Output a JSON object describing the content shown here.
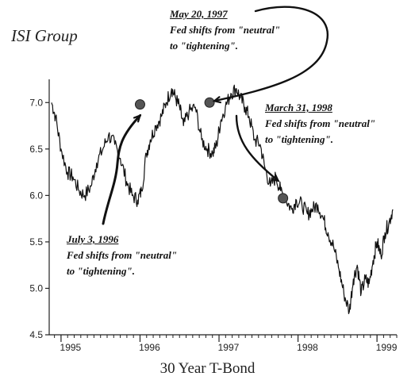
{
  "brand": "ISI Group",
  "chart_data": {
    "type": "line",
    "title": "",
    "xlabel": "30 Year T-Bond",
    "ylabel": "",
    "ylim": [
      4.5,
      7.25
    ],
    "xlim": [
      1994.85,
      1999.25
    ],
    "grid": false,
    "yticks": [
      "4.5",
      "5.0",
      "5.5",
      "6.0",
      "6.5",
      "7.0"
    ],
    "ytick_values": [
      4.5,
      5.0,
      5.5,
      6.0,
      6.5,
      7.0
    ],
    "xticks": [
      "1995",
      "1996",
      "1997",
      "1998",
      "1999"
    ],
    "xtick_values": [
      1995,
      1996,
      1997,
      1998,
      1999
    ],
    "series": [
      {
        "x": [
          1994.88,
          1994.93,
          1995.0,
          1995.08,
          1995.15,
          1995.23,
          1995.3,
          1995.38,
          1995.45,
          1995.53,
          1995.6,
          1995.68,
          1995.75,
          1995.83,
          1995.9,
          1995.97,
          1996.02,
          1996.08,
          1996.13,
          1996.2,
          1996.27,
          1996.33,
          1996.4,
          1996.45,
          1996.5,
          1996.55,
          1996.62,
          1996.7,
          1996.78,
          1996.85,
          1996.92,
          1996.97,
          1997.02,
          1997.08,
          1997.15,
          1997.22,
          1997.27,
          1997.33,
          1997.38,
          1997.45,
          1997.52,
          1997.58,
          1997.65,
          1997.72,
          1997.78,
          1997.85,
          1997.92,
          1997.98,
          1998.05,
          1998.12,
          1998.18,
          1998.25,
          1998.32,
          1998.38,
          1998.45,
          1998.52,
          1998.58,
          1998.65,
          1998.7,
          1998.75,
          1998.8,
          1998.85,
          1998.9,
          1998.95,
          1999.0,
          1999.05,
          1999.1,
          1999.15,
          1999.2
        ],
        "values": [
          7.0,
          6.85,
          6.5,
          6.25,
          6.2,
          6.05,
          6.0,
          6.1,
          6.35,
          6.5,
          6.65,
          6.55,
          6.4,
          6.15,
          6.0,
          5.95,
          6.05,
          6.45,
          6.6,
          6.75,
          6.85,
          7.0,
          7.15,
          7.05,
          6.95,
          6.75,
          6.9,
          6.95,
          6.6,
          6.5,
          6.45,
          6.55,
          6.8,
          6.95,
          7.1,
          7.15,
          7.05,
          6.95,
          6.85,
          6.6,
          6.55,
          6.3,
          6.1,
          6.2,
          6.05,
          5.95,
          5.85,
          5.95,
          5.9,
          5.8,
          5.85,
          5.9,
          5.75,
          5.6,
          5.45,
          5.2,
          4.95,
          4.75,
          5.1,
          5.25,
          4.95,
          5.1,
          5.05,
          5.3,
          5.5,
          5.35,
          5.6,
          5.7,
          5.85
        ]
      }
    ],
    "markers": [
      {
        "x": 1996.0,
        "y": 6.98
      },
      {
        "x": 1996.88,
        "y": 7.0
      },
      {
        "x": 1997.81,
        "y": 5.97
      }
    ],
    "annotations": [
      {
        "date": "May 20, 1997",
        "line1": "Fed shifts from \"neutral\"",
        "line2": "to \"tightening\"."
      },
      {
        "date": "March 31, 1998",
        "line1": "Fed shifts from \"neutral\"",
        "line2": "to \"tightening\"."
      },
      {
        "date": "July 3, 1996",
        "line1": "Fed shifts from \"neutral\"",
        "line2": "to \"tightening\"."
      }
    ]
  }
}
